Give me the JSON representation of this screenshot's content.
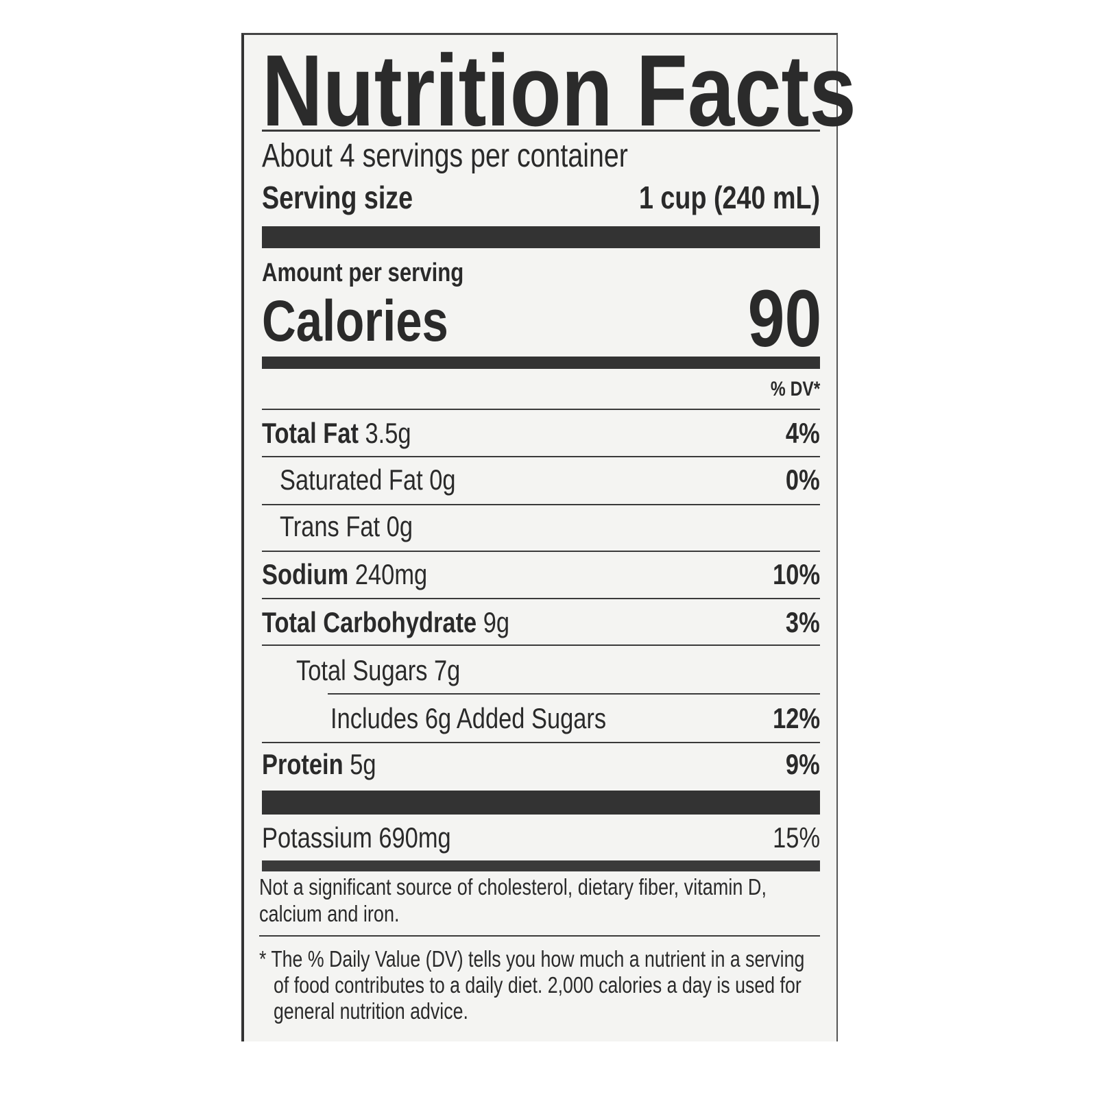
{
  "title": "Nutrition Facts",
  "servings_per_container": "About 4 servings per container",
  "serving_size": {
    "label": "Serving size",
    "value": "1 cup (240 mL)"
  },
  "amount_per_serving": "Amount per serving",
  "calories": {
    "label": "Calories",
    "value": "90"
  },
  "dv_header": "% DV*",
  "nutrients": [
    {
      "name": "Total Fat",
      "amount": "3.5g",
      "dv": "4%"
    },
    {
      "name": "Saturated Fat",
      "amount": "0g",
      "dv": "0%"
    },
    {
      "name": "Trans Fat",
      "amount": "0g",
      "dv": ""
    },
    {
      "name": "Sodium",
      "amount": "240mg",
      "dv": "10%"
    },
    {
      "name": "Total Carbohydrate",
      "amount": "9g",
      "dv": "3%"
    },
    {
      "name": "Total Sugars",
      "amount": "7g",
      "dv": ""
    },
    {
      "name": "Includes 6g Added Sugars",
      "amount": "",
      "dv": "12%"
    },
    {
      "name": "Protein",
      "amount": "5g",
      "dv": "9%"
    },
    {
      "name": "Potassium",
      "amount": "690mg",
      "dv": "15%"
    }
  ],
  "not_significant": "Not a significant source of cholesterol, dietary fiber, vitamin D, calcium and iron.",
  "footnote": "* The % Daily Value (DV) tells you how much a nutrient in a serving of food contributes to a daily diet. 2,000 calories a day is used for general nutrition advice."
}
